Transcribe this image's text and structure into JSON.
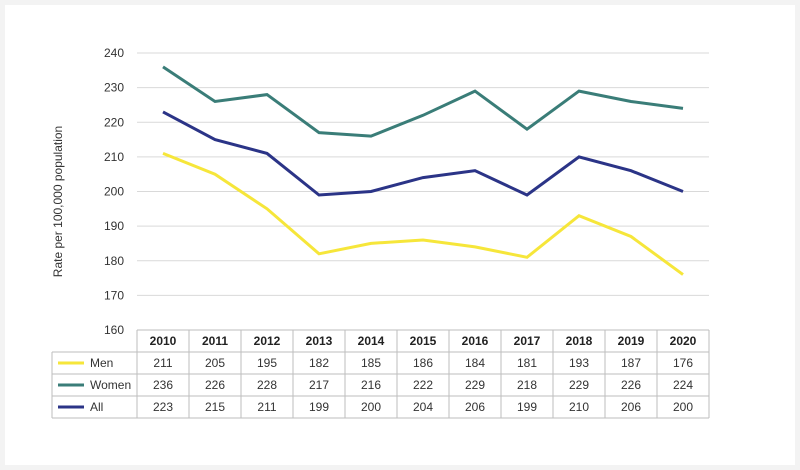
{
  "chart_data": {
    "type": "line",
    "title": "",
    "xlabel": "",
    "ylabel": "Rate per 100,000 population",
    "ylim": [
      160,
      240
    ],
    "yticks": [
      160,
      170,
      180,
      190,
      200,
      210,
      220,
      230,
      240
    ],
    "grid": true,
    "legend": "table-below",
    "categories": [
      "2010",
      "2011",
      "2012",
      "2013",
      "2014",
      "2015",
      "2016",
      "2017",
      "2018",
      "2019",
      "2020"
    ],
    "series": [
      {
        "name": "Men",
        "color": "#f6e63a",
        "values": [
          211,
          205,
          195,
          182,
          185,
          186,
          184,
          181,
          193,
          187,
          176
        ]
      },
      {
        "name": "Women",
        "color": "#3a7d78",
        "values": [
          236,
          226,
          228,
          217,
          216,
          222,
          229,
          218,
          229,
          226,
          224
        ]
      },
      {
        "name": "All",
        "color": "#2b3487",
        "values": [
          223,
          215,
          211,
          199,
          200,
          204,
          206,
          199,
          210,
          206,
          200
        ]
      }
    ]
  }
}
